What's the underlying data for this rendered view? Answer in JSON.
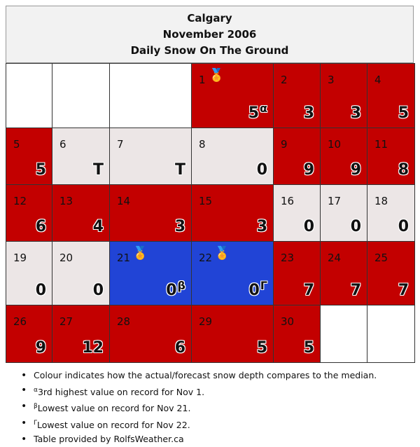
{
  "header": {
    "city": "Calgary",
    "month": "November 2006",
    "subtitle": "Daily Snow On The Ground"
  },
  "colors": {
    "above_median": "#c30000",
    "near_median": "#ece6e6",
    "record_low": "#2144d6",
    "empty": "#ffffff"
  },
  "rows": [
    [
      {
        "empty": true
      },
      {
        "empty": true
      },
      {
        "empty": true
      },
      {
        "day": "1",
        "value": "5",
        "mark": "α",
        "medal": true,
        "status": "red"
      },
      {
        "day": "2",
        "value": "3",
        "status": "red"
      },
      {
        "day": "3",
        "value": "3",
        "status": "red"
      },
      {
        "day": "4",
        "value": "5",
        "status": "red"
      }
    ],
    [
      {
        "day": "5",
        "value": "5",
        "status": "red"
      },
      {
        "day": "6",
        "value": "T",
        "status": "light"
      },
      {
        "day": "7",
        "value": "T",
        "status": "light"
      },
      {
        "day": "8",
        "value": "0",
        "status": "light"
      },
      {
        "day": "9",
        "value": "9",
        "status": "red"
      },
      {
        "day": "10",
        "value": "9",
        "status": "red"
      },
      {
        "day": "11",
        "value": "8",
        "status": "red"
      }
    ],
    [
      {
        "day": "12",
        "value": "6",
        "status": "red"
      },
      {
        "day": "13",
        "value": "4",
        "status": "red"
      },
      {
        "day": "14",
        "value": "3",
        "status": "red"
      },
      {
        "day": "15",
        "value": "3",
        "status": "red"
      },
      {
        "day": "16",
        "value": "0",
        "status": "light"
      },
      {
        "day": "17",
        "value": "0",
        "status": "light"
      },
      {
        "day": "18",
        "value": "0",
        "status": "light"
      }
    ],
    [
      {
        "day": "19",
        "value": "0",
        "status": "light"
      },
      {
        "day": "20",
        "value": "0",
        "status": "light"
      },
      {
        "day": "21",
        "value": "0",
        "mark": "β",
        "medal": true,
        "status": "blue"
      },
      {
        "day": "22",
        "value": "0",
        "mark": "Γ",
        "medal": true,
        "status": "blue"
      },
      {
        "day": "23",
        "value": "7",
        "status": "red"
      },
      {
        "day": "24",
        "value": "7",
        "status": "red"
      },
      {
        "day": "25",
        "value": "7",
        "status": "red"
      }
    ],
    [
      {
        "day": "26",
        "value": "9",
        "status": "red"
      },
      {
        "day": "27",
        "value": "12",
        "status": "red"
      },
      {
        "day": "28",
        "value": "6",
        "status": "red"
      },
      {
        "day": "29",
        "value": "5",
        "status": "red"
      },
      {
        "day": "30",
        "value": "5",
        "status": "red"
      },
      {
        "empty": true
      },
      {
        "empty": true
      }
    ]
  ],
  "notes": [
    {
      "mark": "",
      "text": "Colour indicates how the actual/forecast snow depth compares to the median."
    },
    {
      "mark": "α",
      "text": "3rd highest value on record for Nov 1."
    },
    {
      "mark": "β",
      "text": "Lowest value on record for Nov 21."
    },
    {
      "mark": "Γ",
      "text": "Lowest value on record for Nov 22."
    },
    {
      "mark": "",
      "text": "Table provided by RolfsWeather.ca"
    }
  ]
}
